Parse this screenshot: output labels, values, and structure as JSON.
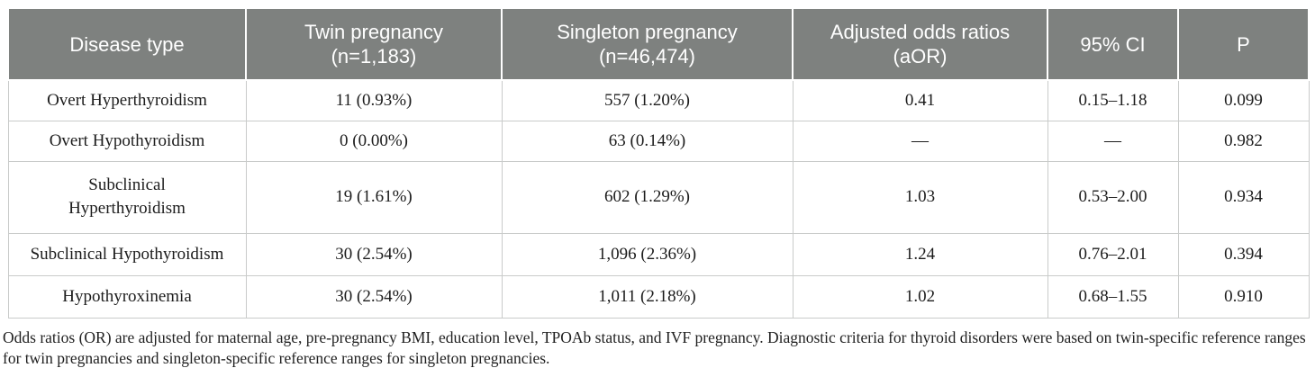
{
  "table": {
    "headers": {
      "disease": {
        "label": "Disease type"
      },
      "twin": {
        "label": "Twin pregnancy",
        "sub": "(n=1,183)"
      },
      "singleton": {
        "label": "Singleton pregnancy",
        "sub": "(n=46,474)"
      },
      "aor": {
        "label": "Adjusted odds ratios",
        "sub": "(aOR)"
      },
      "ci": {
        "label": "95% CI"
      },
      "p": {
        "label": "P"
      }
    },
    "rows": [
      {
        "disease": "Overt Hyperthyroidism",
        "twin": "11 (0.93%)",
        "singleton": "557 (1.20%)",
        "aor": "0.41",
        "ci": "0.15–1.18",
        "p": "0.099"
      },
      {
        "disease": "Overt Hypothyroidism",
        "twin": "0 (0.00%)",
        "singleton": "63 (0.14%)",
        "aor": "—",
        "ci": "—",
        "p": "0.982"
      },
      {
        "disease": "Subclinical\nHyperthyroidism",
        "twin": "19 (1.61%)",
        "singleton": "602 (1.29%)",
        "aor": "1.03",
        "ci": "0.53–2.00",
        "p": "0.934"
      },
      {
        "disease": "Subclinical Hypothyroidism",
        "twin": "30 (2.54%)",
        "singleton": "1,096 (2.36%)",
        "aor": "1.24",
        "ci": "0.76–2.01",
        "p": "0.394"
      },
      {
        "disease": "Hypothyroxinemia",
        "twin": "30 (2.54%)",
        "singleton": "1,011 (2.18%)",
        "aor": "1.02",
        "ci": "0.68–1.55",
        "p": "0.910"
      }
    ],
    "footnote": "Odds ratios (OR) are adjusted for maternal age, pre-pregnancy BMI, education level, TPOAb status, and IVF pregnancy. Diagnostic criteria for thyroid disorders were based on twin-specific reference ranges for twin pregnancies and singleton-specific reference ranges for singleton pregnancies."
  },
  "colors": {
    "header_bg": "#7e817f",
    "header_text": "#ffffff",
    "body_text": "#1c1c1c",
    "border": "#c9cbca"
  }
}
